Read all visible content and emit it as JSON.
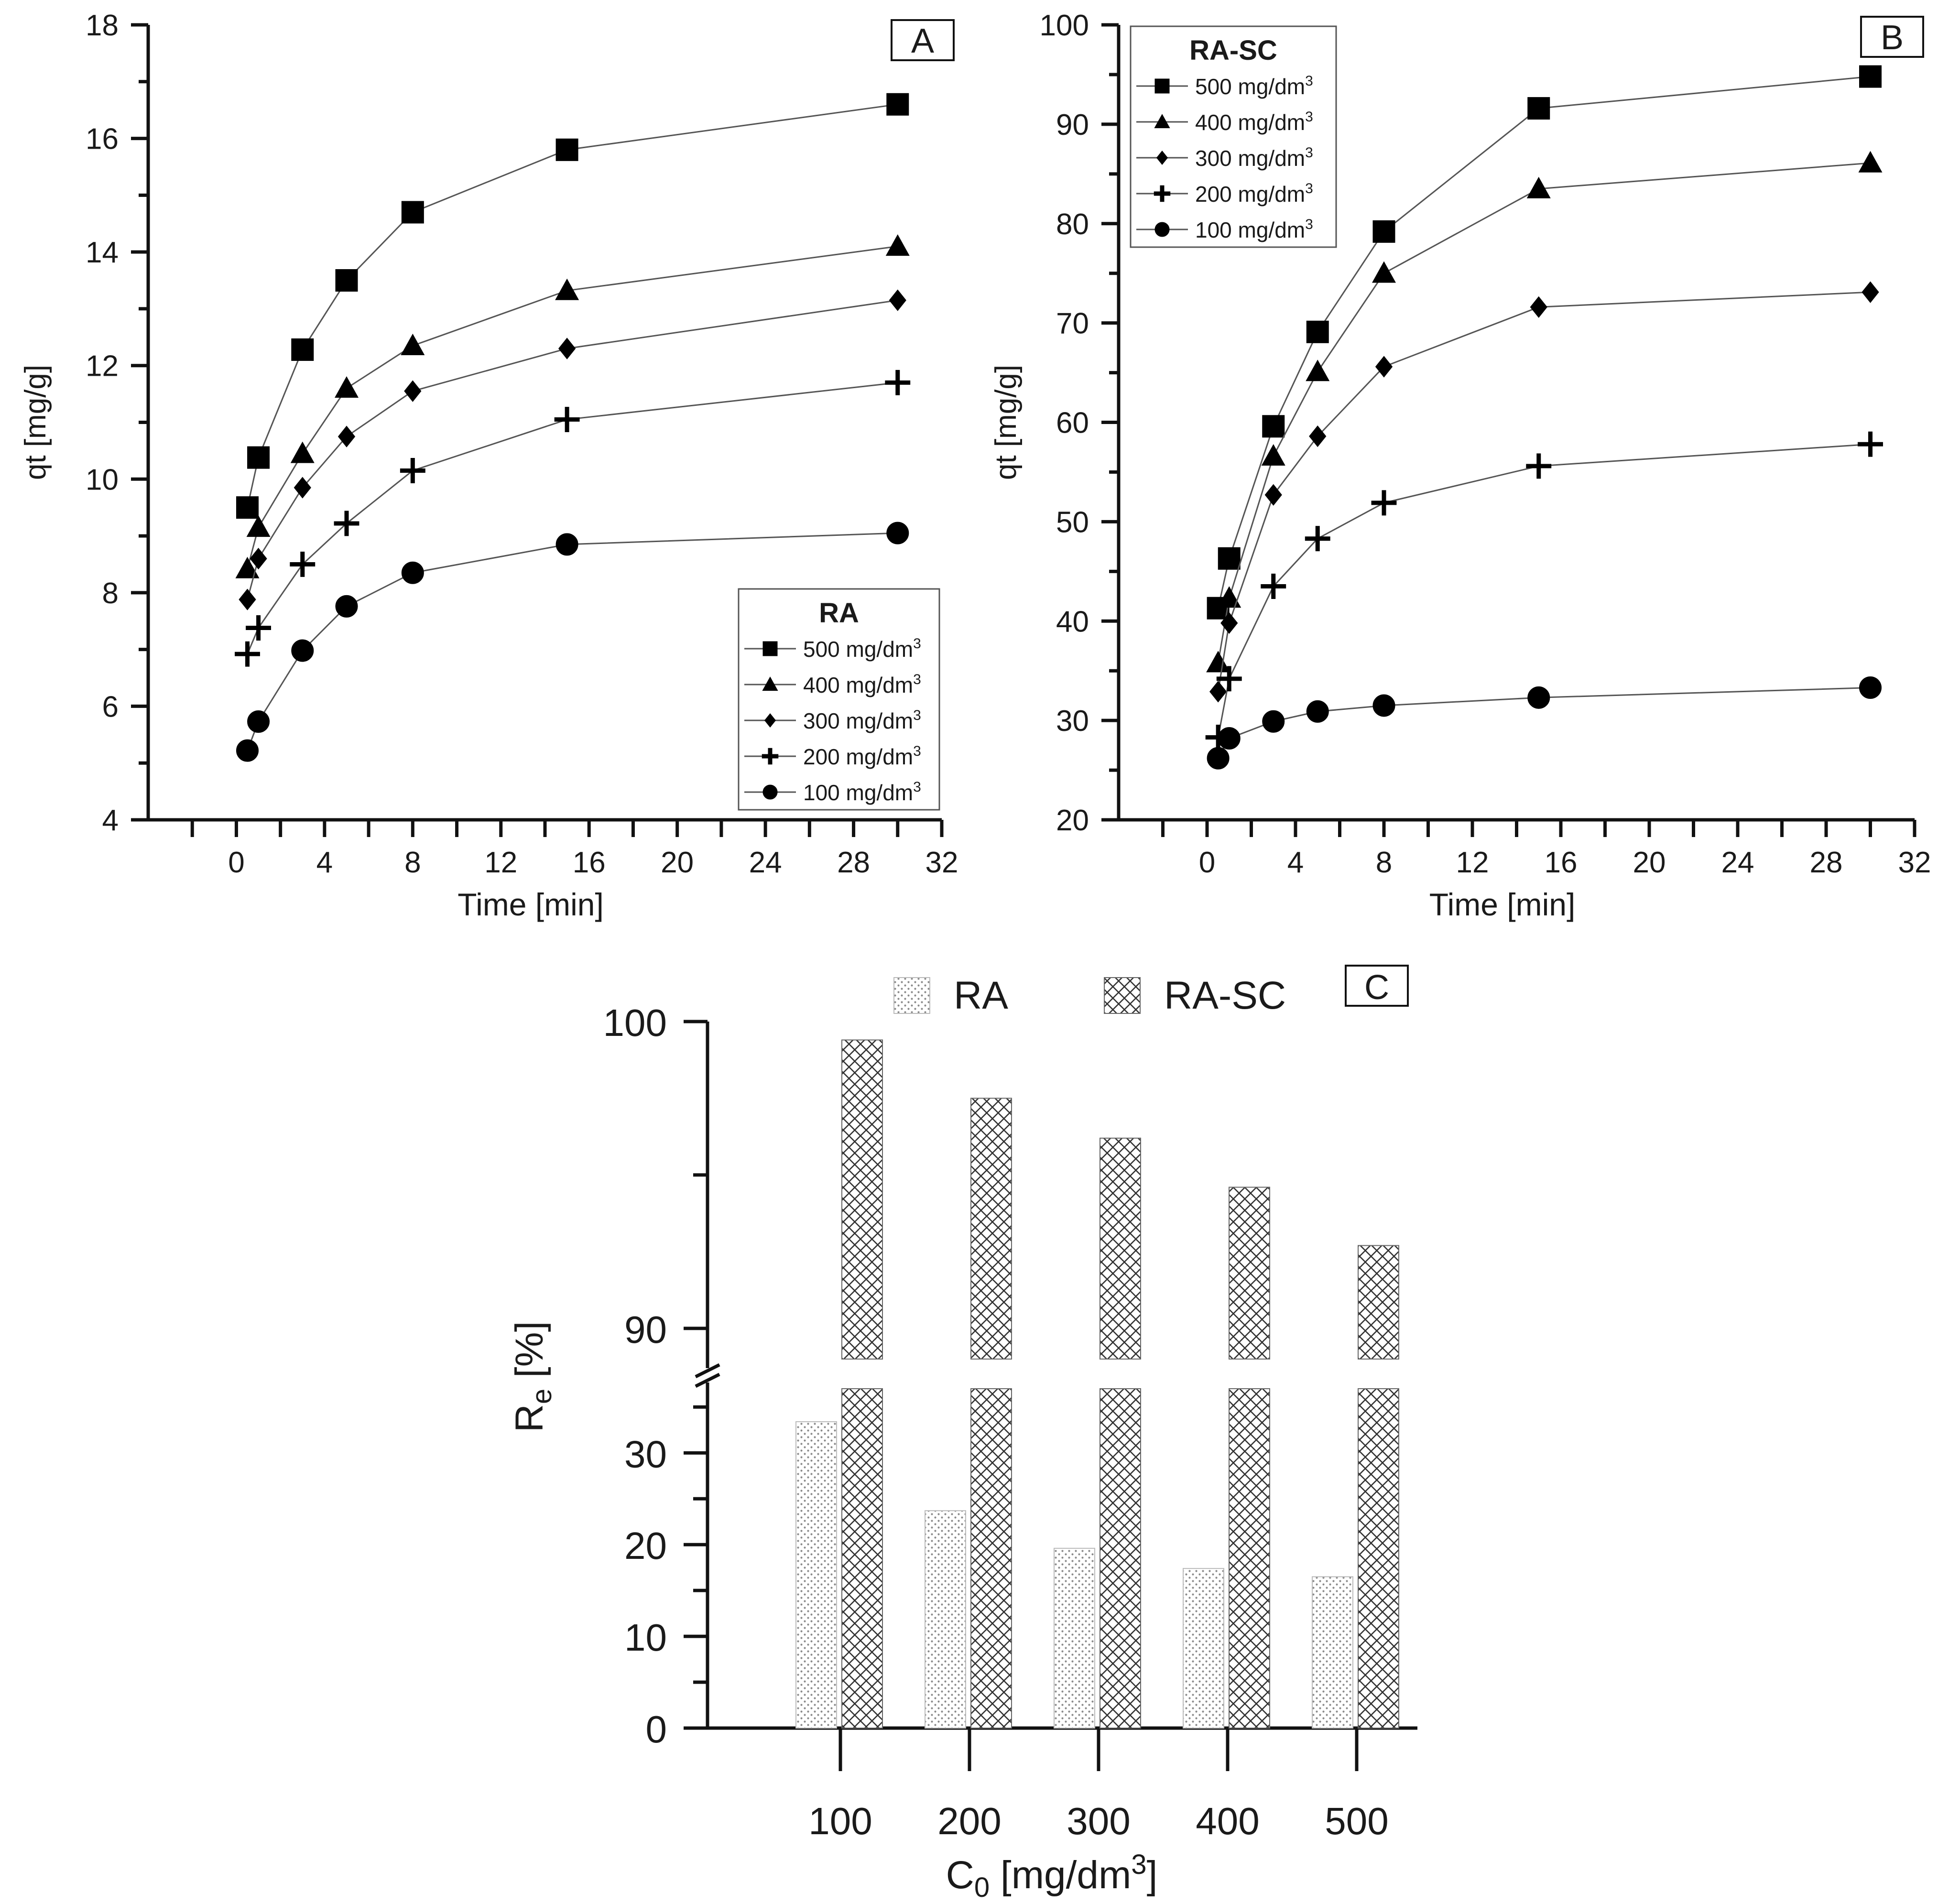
{
  "chart_data": [
    {
      "id": "A",
      "type": "line",
      "panel_label": "A",
      "xlabel": "Time [min]",
      "ylabel": "qt [mg/g]",
      "xlim": [
        -4,
        32
      ],
      "ylim": [
        4,
        18
      ],
      "xticks": [
        0,
        4,
        8,
        12,
        16,
        20,
        24,
        28,
        32
      ],
      "yticks": [
        4,
        6,
        8,
        10,
        12,
        14,
        16,
        18
      ],
      "legend_title": "RA",
      "legend_position": "bottom-right",
      "x": [
        0.5,
        1,
        3,
        5,
        8,
        15,
        30
      ],
      "series": [
        {
          "name": "500 mg/dm3",
          "label": "500 mg/dm",
          "sup": "3",
          "marker": "square",
          "values": [
            9.5,
            10.38,
            12.28,
            13.5,
            14.7,
            15.8,
            16.6
          ]
        },
        {
          "name": "400 mg/dm3",
          "label": "400 mg/dm",
          "sup": "3",
          "marker": "triangle",
          "values": [
            8.42,
            9.15,
            10.45,
            11.6,
            12.35,
            13.32,
            14.1
          ]
        },
        {
          "name": "300 mg/dm3",
          "label": "300 mg/dm",
          "sup": "3",
          "marker": "diamond",
          "values": [
            7.88,
            8.6,
            9.85,
            10.75,
            11.55,
            12.3,
            13.15
          ]
        },
        {
          "name": "200 mg/dm3",
          "label": "200 mg/dm",
          "sup": "3",
          "marker": "plus",
          "values": [
            6.92,
            7.38,
            8.5,
            9.22,
            10.15,
            11.05,
            11.7
          ]
        },
        {
          "name": "100 mg/dm3",
          "label": "100 mg/dm",
          "sup": "3",
          "marker": "circle",
          "values": [
            5.22,
            5.73,
            6.98,
            7.76,
            8.35,
            8.85,
            9.05
          ]
        }
      ]
    },
    {
      "id": "B",
      "type": "line",
      "panel_label": "B",
      "xlabel": "Time [min]",
      "ylabel": "qt [mg/g]",
      "xlim": [
        -4,
        32
      ],
      "ylim": [
        20,
        100
      ],
      "xticks": [
        0,
        4,
        8,
        12,
        16,
        20,
        24,
        28,
        32
      ],
      "yticks": [
        20,
        30,
        40,
        50,
        60,
        70,
        80,
        90,
        100
      ],
      "legend_title": "RA-SC",
      "legend_position": "top-left",
      "x": [
        0.5,
        1,
        3,
        5,
        8,
        15,
        30
      ],
      "series": [
        {
          "name": "500 mg/dm3",
          "label": "500 mg/dm",
          "sup": "3",
          "marker": "square",
          "values": [
            41.3,
            46.3,
            59.6,
            69.1,
            79.2,
            91.6,
            94.8
          ]
        },
        {
          "name": "400 mg/dm3",
          "label": "400 mg/dm",
          "sup": "3",
          "marker": "triangle",
          "values": [
            35.8,
            42.3,
            56.6,
            65.1,
            75.0,
            83.5,
            86.1
          ]
        },
        {
          "name": "300 mg/dm3",
          "label": "300 mg/dm",
          "sup": "3",
          "marker": "diamond",
          "values": [
            32.9,
            39.8,
            52.7,
            58.6,
            65.6,
            71.6,
            73.1
          ]
        },
        {
          "name": "200 mg/dm3",
          "label": "200 mg/dm",
          "sup": "3",
          "marker": "plus",
          "values": [
            28.3,
            34.2,
            43.5,
            48.3,
            51.9,
            55.6,
            57.8
          ]
        },
        {
          "name": "100 mg/dm3",
          "label": "100 mg/dm",
          "sup": "3",
          "marker": "circle",
          "values": [
            26.2,
            28.2,
            29.9,
            30.9,
            31.5,
            32.3,
            33.3
          ]
        }
      ]
    },
    {
      "id": "C",
      "type": "bar",
      "panel_label": "C",
      "xlabel_main": "C",
      "xlabel_sub": "0",
      "xlabel_rest": " [mg/dm",
      "xlabel_sup": "3",
      "xlabel_end": "]",
      "ylabel_main": "R",
      "ylabel_sub": "e",
      "ylabel_rest": " [%]",
      "categories": [
        "100",
        "200",
        "300",
        "400",
        "500"
      ],
      "broken_axis": {
        "lower_range": [
          0,
          37
        ],
        "upper_range": [
          89,
          100
        ]
      },
      "yticks_lower": [
        0,
        10,
        20,
        30
      ],
      "yticks_upper": [
        90,
        100
      ],
      "legend_position": "top",
      "series": [
        {
          "name": "RA",
          "pattern": "dots",
          "values": [
            33.4,
            23.7,
            19.6,
            17.4,
            16.5
          ]
        },
        {
          "name": "RA-SC",
          "pattern": "crosshatch",
          "values": [
            99.4,
            97.5,
            96.2,
            94.6,
            92.7
          ]
        }
      ]
    }
  ]
}
